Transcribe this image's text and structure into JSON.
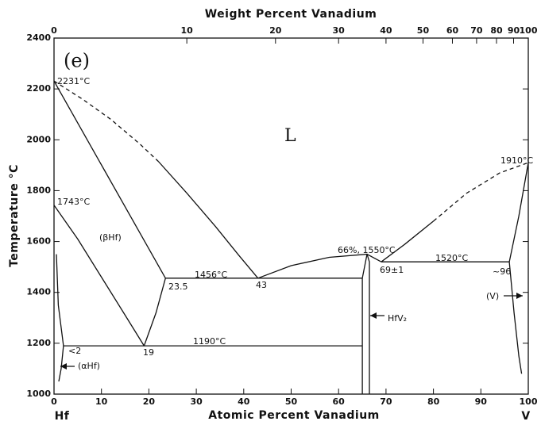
{
  "chart_data": {
    "type": "line",
    "x_label": "Atomic Percent Vanadium",
    "x2_label": "Weight Percent Vanadium",
    "y_label": "Temperature °C",
    "x_end_labels": [
      "Hf",
      "V"
    ],
    "xlim": [
      0,
      100
    ],
    "ylim": [
      1000,
      2400
    ],
    "xticks": [
      0,
      10,
      20,
      30,
      40,
      50,
      60,
      70,
      80,
      90,
      100
    ],
    "yticks": [
      1000,
      1200,
      1400,
      1600,
      1800,
      2000,
      2200,
      2400
    ],
    "x2ticks": [
      {
        "value": 0,
        "label": "0"
      },
      {
        "value": 28.0,
        "label": "10"
      },
      {
        "value": 46.7,
        "label": "20"
      },
      {
        "value": 60.0,
        "label": "30"
      },
      {
        "value": 70.0,
        "label": "40"
      },
      {
        "value": 77.8,
        "label": "50"
      },
      {
        "value": 84.0,
        "label": "60"
      },
      {
        "value": 89.1,
        "label": "70"
      },
      {
        "value": 93.3,
        "label": "80"
      },
      {
        "value": 96.9,
        "label": "90"
      },
      {
        "value": 100,
        "label": "100"
      }
    ],
    "color": "#111111",
    "series": [
      {
        "x": [
          0,
          23.5
        ],
        "values": [
          2231,
          1456
        ],
        "dashed": false
      },
      {
        "x": [
          0,
          6,
          12,
          18,
          22
        ],
        "values": [
          2231,
          2160,
          2080,
          1985,
          1915
        ],
        "dashed": true
      },
      {
        "x": [
          22,
          28,
          34,
          39,
          43
        ],
        "values": [
          1915,
          1790,
          1660,
          1545,
          1456
        ],
        "dashed": false
      },
      {
        "x": [
          43,
          50,
          58,
          66,
          69
        ],
        "values": [
          1456,
          1505,
          1538,
          1550,
          1520
        ],
        "dashed": false
      },
      {
        "x": [
          69,
          74,
          80
        ],
        "values": [
          1520,
          1590,
          1680
        ],
        "dashed": false
      },
      {
        "x": [
          80,
          87,
          94,
          100
        ],
        "values": [
          1680,
          1790,
          1870,
          1910
        ],
        "dashed": true
      },
      {
        "x": [
          0,
          5,
          10,
          15,
          19
        ],
        "values": [
          1743,
          1610,
          1460,
          1310,
          1190
        ],
        "dashed": false
      },
      {
        "x": [
          19,
          21.5,
          23.5
        ],
        "values": [
          1190,
          1320,
          1456
        ],
        "dashed": false
      },
      {
        "x": [
          23.5,
          65
        ],
        "values": [
          1456,
          1456
        ],
        "dashed": false
      },
      {
        "x": [
          2,
          65
        ],
        "values": [
          1190,
          1190
        ],
        "dashed": false
      },
      {
        "x": [
          0.5,
          0.9,
          2,
          1.5,
          1
        ],
        "values": [
          1550,
          1350,
          1190,
          1100,
          1050
        ],
        "dashed": false
      },
      {
        "x": [
          65,
          65,
          66
        ],
        "values": [
          1000,
          1456,
          1550
        ],
        "dashed": false
      },
      {
        "x": [
          66.5,
          66.5,
          66
        ],
        "values": [
          1000,
          1520,
          1550
        ],
        "dashed": false
      },
      {
        "x": [
          69,
          96
        ],
        "values": [
          1520,
          1520
        ],
        "dashed": false
      },
      {
        "x": [
          100,
          98,
          96
        ],
        "values": [
          1910,
          1700,
          1520
        ],
        "dashed": false
      },
      {
        "x": [
          96,
          97,
          98,
          98.6
        ],
        "values": [
          1520,
          1320,
          1150,
          1080
        ],
        "dashed": false
      }
    ],
    "annotations": [
      "(e)",
      "2231°C",
      "1743°C",
      "(βHf)",
      "1456°C",
      "23.5",
      "43",
      "66%, 1550°C",
      "69±1",
      "1520°C",
      "~96",
      "1910°C",
      "(V)",
      "HfV₂",
      "1190°C",
      "19",
      "<2",
      "(αHf)",
      "L"
    ]
  }
}
